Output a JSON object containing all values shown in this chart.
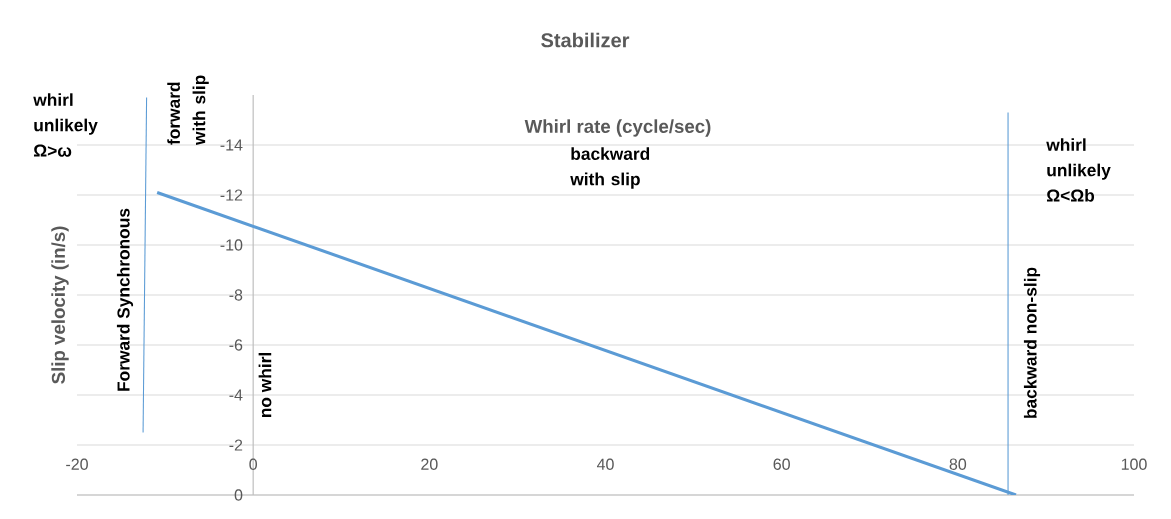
{
  "chart_data": {
    "type": "line",
    "title": "Stabilizer",
    "xlabel": "Whirl rate (cycle/sec)",
    "ylabel": "Slip velocity (in/s)",
    "xlim": [
      -20,
      100
    ],
    "xticks": [
      -20,
      0,
      20,
      40,
      60,
      80,
      100
    ],
    "ylim": [
      0,
      -16
    ],
    "yticks": [
      0,
      -2,
      -4,
      -6,
      -8,
      -10,
      -12,
      -14
    ],
    "grid": "y",
    "marker": "none",
    "line_style": "solid",
    "series": [
      {
        "color": "#5b9bd5",
        "x": [
          -10.9,
          86.6
        ],
        "values": [
          -12.1,
          0
        ]
      },
      {
        "color": "#5b9bd5",
        "x": [
          -12.5,
          -12.1
        ],
        "values": [
          -2.5,
          -15.9
        ]
      },
      {
        "color": "#5b9bd5",
        "x": [
          85.7,
          85.7
        ],
        "values": [
          0,
          -15.3
        ]
      }
    ],
    "annotations": [
      "whirl unlikely Ω>ω",
      "forward with slip",
      "Forward Synchronous",
      "no whirl",
      "backward with slip",
      "backward non-slip",
      "whirl unlikely Ω<Ωb"
    ]
  }
}
